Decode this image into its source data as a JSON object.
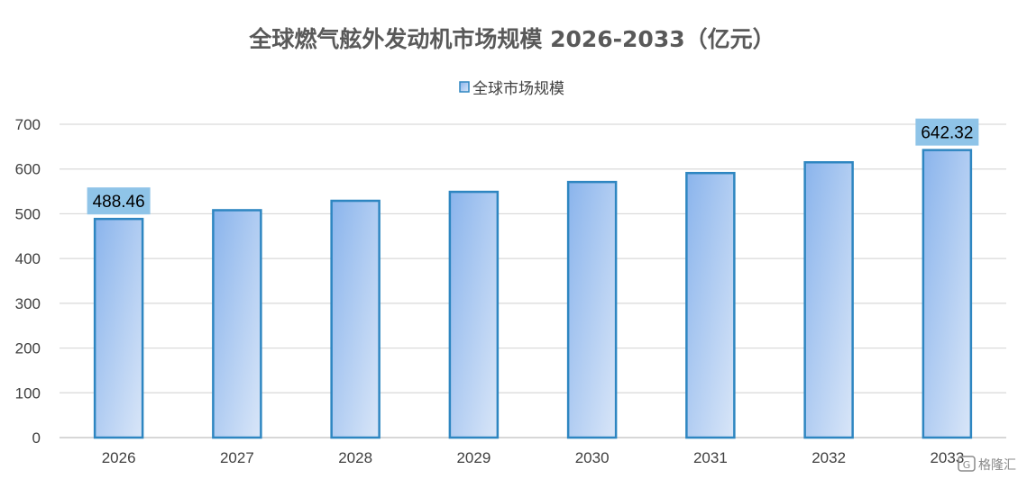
{
  "chart_data": {
    "type": "bar",
    "title": "全球燃气舷外发动机市场规模 2026-2033（亿元）",
    "categories": [
      "2026",
      "2027",
      "2028",
      "2029",
      "2030",
      "2031",
      "2032",
      "2033"
    ],
    "series": [
      {
        "name": "全球市场规模",
        "values": [
          488.46,
          508,
          529,
          549,
          571,
          591,
          615,
          642.32
        ],
        "labeled": [
          true,
          false,
          false,
          false,
          false,
          false,
          false,
          true
        ]
      }
    ],
    "data_labels": [
      "488.46",
      "642.32"
    ],
    "ylim": [
      0,
      700
    ],
    "yticks": [
      0,
      100,
      200,
      300,
      400,
      500,
      600,
      700
    ],
    "grid": true,
    "legend_position": "top-center",
    "colors": {
      "bar_fill_top": "#8ab4ec",
      "bar_fill_bottom": "#d9e6f8",
      "bar_stroke": "#2e86c1",
      "label_bg": "#8fc4e8",
      "grid": "#d9d9d9",
      "axis": "#bfbfbf"
    }
  },
  "watermark": {
    "icon": "gelonghui-logo-icon",
    "text": "格隆汇"
  }
}
